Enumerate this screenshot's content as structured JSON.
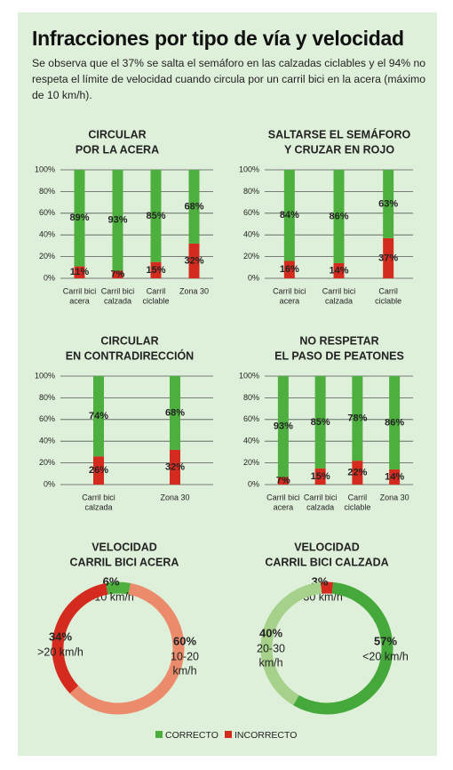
{
  "title": "Infracciones por tipo de vía y velocidad",
  "subtitle": "Se observa que el 37% se salta el semáforo en las calzadas ciclables y el 94% no respeta el límite de velocidad cuando circula por un carril bici en la acera (máximo de 10 km/h).",
  "legend": [
    {
      "name": "CORRECTO",
      "color": "#4caf3e"
    },
    {
      "name": "INCORRECTO",
      "color": "#d52b1e"
    }
  ],
  "chart_data": [
    {
      "type": "bar",
      "stacked": true,
      "title": [
        "CIRCULAR",
        "POR LA ACERA"
      ],
      "categories": [
        [
          "Carril bici",
          "acera"
        ],
        [
          "Carril bici",
          "calzada"
        ],
        [
          "Carril",
          "ciclable"
        ],
        [
          "Zona 30"
        ]
      ],
      "series": [
        {
          "color": "#d52b1e",
          "values": [
            11,
            7,
            15,
            32
          ],
          "value_labels": [
            "11%",
            "7%",
            "15%",
            "32%"
          ]
        },
        {
          "color": "#4caf3e",
          "values": [
            89,
            93,
            85,
            68
          ],
          "value_labels": [
            "89%",
            "93%",
            "85%",
            "68%"
          ]
        }
      ],
      "ylim": [
        0,
        100
      ],
      "grid": true,
      "yticks": [
        {
          "value": 0,
          "label": "0%"
        },
        {
          "value": 20,
          "label": "20%"
        },
        {
          "value": 40,
          "label": "40%"
        },
        {
          "value": 60,
          "label": "60%"
        },
        {
          "value": 80,
          "label": "80%"
        },
        {
          "value": 100,
          "label": "100%"
        }
      ]
    },
    {
      "type": "bar",
      "stacked": true,
      "title": [
        "SALTARSE EL SEMÁFORO",
        "Y CRUZAR EN ROJO"
      ],
      "categories": [
        [
          "Carril bici",
          "acera"
        ],
        [
          "Carril bici",
          "calzada"
        ],
        [
          "Carril",
          "ciclable"
        ]
      ],
      "series": [
        {
          "color": "#d52b1e",
          "values": [
            16,
            14,
            37
          ],
          "value_labels": [
            "16%",
            "14%",
            "37%"
          ]
        },
        {
          "color": "#4caf3e",
          "values": [
            84,
            86,
            63
          ],
          "value_labels": [
            "84%",
            "86%",
            "63%"
          ]
        }
      ],
      "ylim": [
        0,
        100
      ],
      "grid": true,
      "yticks": [
        {
          "value": 0,
          "label": "0%"
        },
        {
          "value": 20,
          "label": "20%"
        },
        {
          "value": 40,
          "label": "40%"
        },
        {
          "value": 60,
          "label": "60%"
        },
        {
          "value": 80,
          "label": "80%"
        },
        {
          "value": 100,
          "label": "100%"
        }
      ]
    },
    {
      "type": "bar",
      "stacked": true,
      "title": [
        "CIRCULAR",
        "EN CONTRADIRECCIÓN"
      ],
      "categories": [
        [
          "Carril bici",
          "calzada"
        ],
        [
          "Zona 30"
        ]
      ],
      "series": [
        {
          "color": "#d52b1e",
          "values": [
            26,
            32
          ],
          "value_labels": [
            "26%",
            "32%"
          ]
        },
        {
          "color": "#4caf3e",
          "values": [
            74,
            68
          ],
          "value_labels": [
            "74%",
            "68%"
          ]
        }
      ],
      "ylim": [
        0,
        100
      ],
      "grid": true,
      "yticks": [
        {
          "value": 0,
          "label": "0%"
        },
        {
          "value": 20,
          "label": "20%"
        },
        {
          "value": 40,
          "label": "40%"
        },
        {
          "value": 60,
          "label": "60%"
        },
        {
          "value": 80,
          "label": "80%"
        },
        {
          "value": 100,
          "label": "100%"
        }
      ]
    },
    {
      "type": "bar",
      "stacked": true,
      "title": [
        "NO RESPETAR",
        "EL PASO DE PEATONES"
      ],
      "categories": [
        [
          "Carril bici",
          "acera"
        ],
        [
          "Carril bici",
          "calzada"
        ],
        [
          "Carril",
          "ciclable"
        ],
        [
          "Zona 30"
        ]
      ],
      "series": [
        {
          "color": "#d52b1e",
          "values": [
            7,
            15,
            22,
            14
          ],
          "value_labels": [
            "7%",
            "15%",
            "22%",
            "14%"
          ]
        },
        {
          "color": "#4caf3e",
          "values": [
            93,
            85,
            78,
            86
          ],
          "value_labels": [
            "93%",
            "85%",
            "78%",
            "86%"
          ]
        }
      ],
      "ylim": [
        0,
        100
      ],
      "grid": true,
      "yticks": [
        {
          "value": 0,
          "label": "0%"
        },
        {
          "value": 20,
          "label": "20%"
        },
        {
          "value": 40,
          "label": "40%"
        },
        {
          "value": 60,
          "label": "60%"
        },
        {
          "value": 80,
          "label": "80%"
        },
        {
          "value": 100,
          "label": "100%"
        }
      ]
    },
    {
      "type": "donut",
      "title": [
        "VELOCIDAD",
        "CARRIL BICI ACERA"
      ],
      "categories": [
        [
          "<10 km/h"
        ],
        [
          "10-20",
          "km/h"
        ],
        [
          ">20 km/h"
        ]
      ],
      "values": [
        6,
        60,
        34
      ],
      "value_labels": [
        "6%",
        "60%",
        "34%"
      ],
      "colors": [
        "#4caf3e",
        "#eb8b6c",
        "#d52b1e"
      ]
    },
    {
      "type": "donut",
      "title": [
        "VELOCIDAD",
        "CARRIL BICI CALZADA"
      ],
      "categories": [
        [
          ">30 km/h"
        ],
        [
          "<20 km/h"
        ],
        [
          "20-30",
          "km/h"
        ]
      ],
      "values": [
        3,
        57,
        40
      ],
      "value_labels": [
        "3%",
        "57%",
        "40%"
      ],
      "colors": [
        "#d52b1e",
        "#45a83a",
        "#a5d18a"
      ]
    }
  ]
}
